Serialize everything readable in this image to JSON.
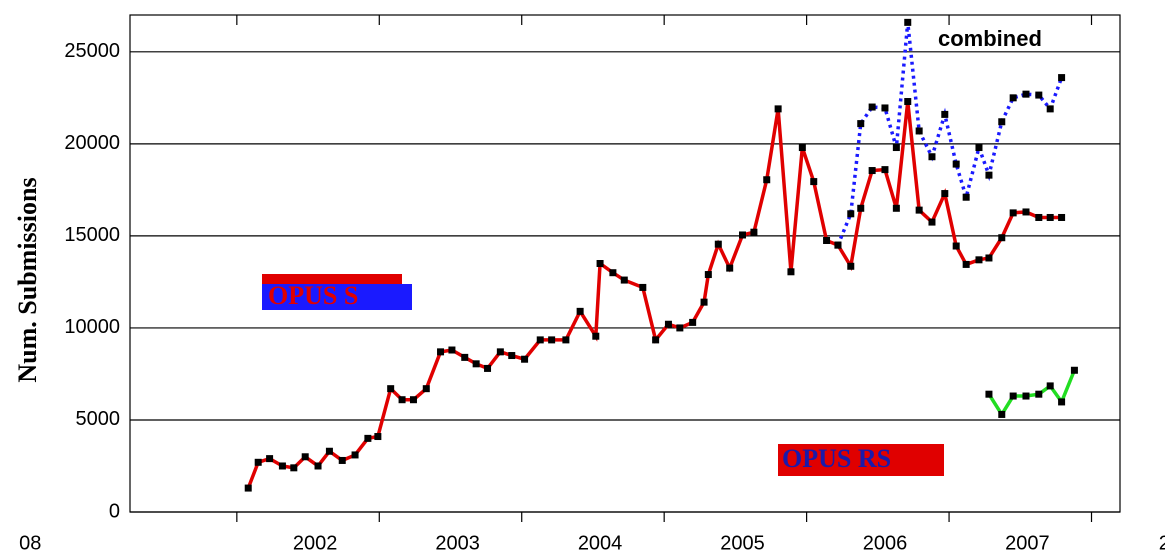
{
  "chart_data": {
    "type": "line",
    "y_label": "Num. Submissions",
    "xlim": [
      2001.25,
      2008.2
    ],
    "xticks": [
      {
        "value": 2000,
        "label": "08"
      },
      2002,
      2003,
      2004,
      2005,
      2006,
      2007,
      {
        "value": 2008,
        "label": "20"
      }
    ],
    "ylim": [
      0,
      27000
    ],
    "yticks": [
      0,
      5000,
      10000,
      15000,
      20000,
      25000
    ],
    "grid": true,
    "series": [
      {
        "name": "OPUS S",
        "color": "#e00000",
        "x": [
          2002.08,
          2002.15,
          2002.23,
          2002.32,
          2002.4,
          2002.48,
          2002.57,
          2002.65,
          2002.74,
          2002.83,
          2002.92,
          2002.99,
          2003.08,
          2003.16,
          2003.24,
          2003.33,
          2003.43,
          2003.51,
          2003.6,
          2003.68,
          2003.76,
          2003.85,
          2003.93,
          2004.02,
          2004.13,
          2004.21,
          2004.31,
          2004.41,
          2004.52,
          2004.55,
          2004.64,
          2004.72,
          2004.85,
          2004.94,
          2005.03,
          2005.11,
          2005.2,
          2005.28,
          2005.31,
          2005.38,
          2005.46,
          2005.55,
          2005.63,
          2005.72,
          2005.8,
          2005.89,
          2005.97,
          2006.05,
          2006.14,
          2006.22,
          2006.31,
          2006.38,
          2006.46,
          2006.55,
          2006.63,
          2006.71,
          2006.79,
          2006.88,
          2006.97,
          2007.05,
          2007.12,
          2007.21,
          2007.28,
          2007.37,
          2007.45,
          2007.54,
          2007.63,
          2007.71,
          2007.79
        ],
        "values": [
          1300,
          2700,
          2900,
          2500,
          2400,
          3000,
          2500,
          3300,
          2800,
          3100,
          4000,
          4100,
          6700,
          6100,
          6100,
          6700,
          8700,
          8800,
          8400,
          8050,
          7800,
          8700,
          8500,
          8300,
          9350,
          9350,
          9350,
          10900,
          9550,
          13500,
          13000,
          12600,
          12200,
          9350,
          10200,
          10000,
          10300,
          11400,
          12900,
          14550,
          13250,
          15050,
          15200,
          18050,
          21900,
          13050,
          19800,
          17950,
          14750,
          14500,
          13350,
          16500,
          18550,
          18600,
          16500,
          22300,
          16400,
          15750,
          17300,
          14450,
          13450,
          13700,
          13800,
          14900,
          16250,
          16300,
          16000,
          16000,
          16000
        ]
      },
      {
        "name": "OPUS RS",
        "color": "#22dd22",
        "x": [
          2007.28,
          2007.37,
          2007.45,
          2007.54,
          2007.63,
          2007.71,
          2007.79,
          2007.88
        ],
        "values": [
          6400,
          5300,
          6300,
          6300,
          6400,
          6850,
          5980,
          7700
        ]
      },
      {
        "name": "combined",
        "color": "#1a1aff",
        "dashed": true,
        "x": [
          2006.22,
          2006.31,
          2006.38,
          2006.46,
          2006.55,
          2006.63,
          2006.71,
          2006.79,
          2006.88,
          2006.97,
          2007.05,
          2007.12,
          2007.21,
          2007.28,
          2007.37,
          2007.45,
          2007.54,
          2007.63,
          2007.71,
          2007.79
        ],
        "values": [
          14500,
          16200,
          21100,
          22000,
          21950,
          19800,
          26600,
          20700,
          19300,
          21600,
          18900,
          17100,
          19800,
          18300,
          21200,
          22500,
          22700,
          22650,
          21900,
          23600
        ]
      }
    ]
  }
}
